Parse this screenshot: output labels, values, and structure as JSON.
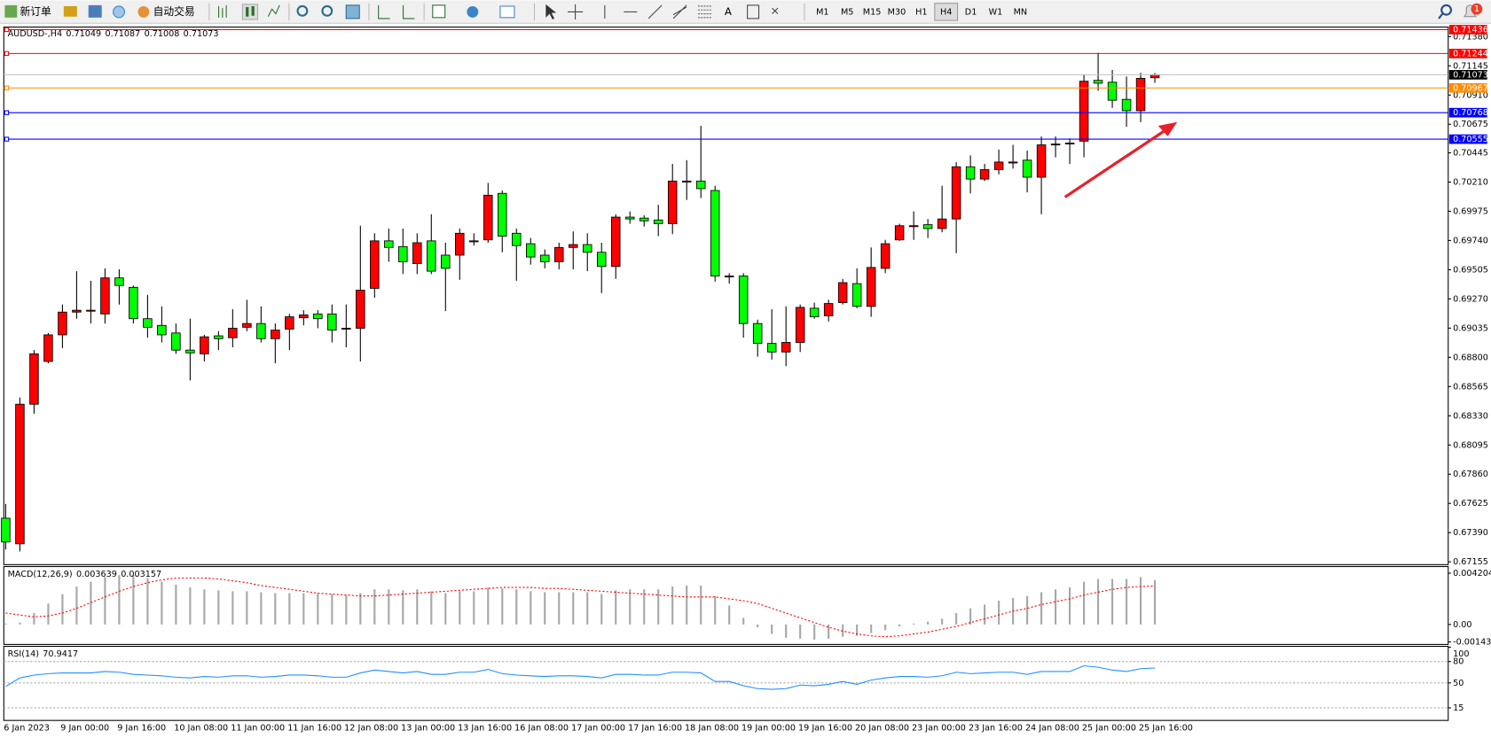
{
  "toolbar": {
    "buttons": [
      "新订单",
      "自动交易"
    ],
    "text_tool": "A",
    "timeframes": [
      "M1",
      "M5",
      "M15",
      "M30",
      "H1",
      "H4",
      "D1",
      "W1",
      "MN"
    ],
    "active_timeframe": "H4",
    "notifications": 1
  },
  "chart_data": [
    {
      "type": "candlestick",
      "title": "AUDUSD-,H4",
      "categories": [
        "6 Jan 2023",
        null,
        null,
        null,
        "9 Jan 00:00",
        null,
        null,
        null,
        "9 Jan 16:00",
        null,
        null,
        null,
        "10 Jan 08:00",
        null,
        null,
        null,
        "11 Jan 00:00",
        null,
        null,
        null,
        "11 Jan 16:00",
        null,
        null,
        null,
        "12 Jan 08:00",
        null,
        null,
        null,
        "13 Jan 00:00",
        null,
        null,
        null,
        "13 Jan 16:00",
        null,
        null,
        null,
        "16 Jan 08:00",
        null,
        null,
        null,
        "17 Jan 00:00",
        null,
        null,
        null,
        "17 Jan 16:00",
        null,
        null,
        null,
        "18 Jan 08:00",
        null,
        null,
        null,
        "19 Jan 00:00",
        null,
        null,
        null,
        "19 Jan 16:00",
        null,
        null,
        null,
        "20 Jan 08:00",
        null,
        null,
        null,
        "23 Jan 00:00",
        null,
        null,
        null,
        "23 Jan 16:00",
        null,
        null,
        null,
        "24 Jan 08:00",
        null,
        null,
        null,
        "25 Jan 00:00",
        null,
        null,
        null,
        "25 Jan 16:00",
        null
      ],
      "open": [
        0.67506,
        0.673,
        0.68423,
        0.68767,
        0.68981,
        0.69164,
        0.69172,
        0.69149,
        0.69439,
        0.69363,
        0.69111,
        0.69057,
        0.68996,
        0.68858,
        0.68828,
        0.68973,
        0.68958,
        0.69042,
        0.69072,
        0.6895,
        0.69027,
        0.69118,
        0.69149,
        0.69149,
        0.69034,
        0.69034,
        0.69355,
        0.69737,
        0.69691,
        0.69554,
        0.69737,
        0.69622,
        0.69622,
        0.69737,
        0.69745,
        0.70119,
        0.69798,
        0.69714,
        0.69622,
        0.69569,
        0.69684,
        0.69707,
        0.69645,
        0.69531,
        0.69928,
        0.6992,
        0.69905,
        0.69875,
        0.70218,
        0.70218,
        0.70142,
        0.69454,
        0.69454,
        0.69072,
        0.68912,
        0.68843,
        0.6892,
        0.69195,
        0.69134,
        0.6924,
        0.69393,
        0.6921,
        0.69516,
        0.69745,
        0.69859,
        0.69867,
        0.69836,
        0.69913,
        0.70333,
        0.70234,
        0.7031,
        0.70371,
        0.70386,
        0.70249,
        0.70516,
        0.70524,
        0.70539,
        0.71028,
        0.71013,
        0.70875,
        0.70784,
        0.71049
      ],
      "high": [
        0.67621,
        0.68476,
        0.68858,
        0.68996,
        0.69225,
        0.69493,
        0.69416,
        0.69516,
        0.69508,
        0.69378,
        0.69302,
        0.6921,
        0.69072,
        0.69111,
        0.68981,
        0.69011,
        0.69187,
        0.69263,
        0.6921,
        0.69072,
        0.69149,
        0.69179,
        0.69179,
        0.69225,
        0.69225,
        0.69859,
        0.69798,
        0.69836,
        0.69836,
        0.69798,
        0.69951,
        0.69722,
        0.69836,
        0.69798,
        0.70203,
        0.70142,
        0.69836,
        0.6976,
        0.69668,
        0.69722,
        0.69813,
        0.69798,
        0.69722,
        0.69951,
        0.69974,
        0.69943,
        0.70027,
        0.70356,
        0.70386,
        0.70662,
        0.7018,
        0.69477,
        0.69477,
        0.69103,
        0.69187,
        0.6921,
        0.69225,
        0.6924,
        0.69263,
        0.69431,
        0.69516,
        0.69684,
        0.69745,
        0.69875,
        0.69974,
        0.69913,
        0.7018,
        0.70371,
        0.70425,
        0.70356,
        0.70471,
        0.70509,
        0.70463,
        0.70577,
        0.70577,
        0.70562,
        0.71074,
        0.7125,
        0.71112,
        0.71059,
        0.71089,
        0.71087
      ],
      "low": [
        0.67254,
        0.67239,
        0.68347,
        0.68752,
        0.68874,
        0.69111,
        0.69072,
        0.69072,
        0.69225,
        0.69072,
        0.68958,
        0.6892,
        0.68828,
        0.68614,
        0.68767,
        0.68858,
        0.68881,
        0.69011,
        0.6892,
        0.68752,
        0.68858,
        0.69057,
        0.69034,
        0.6892,
        0.68881,
        0.68767,
        0.69279,
        0.69569,
        0.6947,
        0.6947,
        0.6947,
        0.69172,
        0.69424,
        0.69699,
        0.69722,
        0.69645,
        0.69416,
        0.69546,
        0.69516,
        0.69508,
        0.69508,
        0.69493,
        0.69317,
        0.69431,
        0.69875,
        0.69852,
        0.69775,
        0.69791,
        0.70066,
        0.70081,
        0.69409,
        0.69393,
        0.68958,
        0.68805,
        0.68782,
        0.68729,
        0.68843,
        0.69111,
        0.69088,
        0.69225,
        0.69195,
        0.69126,
        0.69477,
        0.69737,
        0.69745,
        0.6976,
        0.69806,
        0.69638,
        0.70119,
        0.70218,
        0.70272,
        0.70318,
        0.70127,
        0.69951,
        0.70409,
        0.70356,
        0.70409,
        0.70944,
        0.70807,
        0.70654,
        0.70692,
        0.71008
      ],
      "close": [
        0.67315,
        0.68423,
        0.68828,
        0.68981,
        0.69164,
        0.69179,
        0.69179,
        0.69439,
        0.69378,
        0.69111,
        0.69042,
        0.68981,
        0.68858,
        0.68836,
        0.68965,
        0.6895,
        0.69034,
        0.69072,
        0.6895,
        0.69019,
        0.69126,
        0.69141,
        0.69111,
        0.69019,
        0.69034,
        0.6934,
        0.69737,
        0.69684,
        0.69569,
        0.69722,
        0.69493,
        0.69516,
        0.69798,
        0.69737,
        0.70104,
        0.69775,
        0.69699,
        0.69607,
        0.69569,
        0.69684,
        0.69707,
        0.69645,
        0.69531,
        0.69928,
        0.69913,
        0.69898,
        0.69875,
        0.70218,
        0.70218,
        0.70157,
        0.69454,
        0.69454,
        0.69072,
        0.68912,
        0.68843,
        0.6892,
        0.69202,
        0.69126,
        0.69233,
        0.69401,
        0.6921,
        0.69523,
        0.69714,
        0.69859,
        0.69859,
        0.69836,
        0.69913,
        0.70333,
        0.70234,
        0.7031,
        0.70371,
        0.70371,
        0.70249,
        0.70509,
        0.70516,
        0.70524,
        0.71021,
        0.71005,
        0.70868,
        0.70784,
        0.71044,
        0.71073
      ],
      "up_color": "#ff0000",
      "down_color": "#00ff00",
      "ylim": [
        0.6714,
        0.71449
      ],
      "yticks": [
        {
          "value": 0.7138,
          "label": "0.71380"
        },
        {
          "value": 0.71145,
          "label": "0.71145"
        },
        {
          "value": 0.7091,
          "label": "0.70910"
        },
        {
          "value": 0.70675,
          "label": "0.70675"
        },
        {
          "value": 0.70445,
          "label": "0.70445"
        },
        {
          "value": 0.7021,
          "label": "0.70210"
        },
        {
          "value": 0.69975,
          "label": "0.69975"
        },
        {
          "value": 0.6974,
          "label": "0.69740"
        },
        {
          "value": 0.69505,
          "label": "0.69505"
        },
        {
          "value": 0.6927,
          "label": "0.69270"
        },
        {
          "value": 0.69035,
          "label": "0.69035"
        },
        {
          "value": 0.688,
          "label": "0.68800"
        },
        {
          "value": 0.68565,
          "label": "0.68565"
        },
        {
          "value": 0.6833,
          "label": "0.68330"
        },
        {
          "value": 0.68095,
          "label": "0.68095"
        },
        {
          "value": 0.6786,
          "label": "0.67860"
        },
        {
          "value": 0.67625,
          "label": "0.67625"
        },
        {
          "value": 0.6739,
          "label": "0.67390"
        },
        {
          "value": 0.67155,
          "label": "0.67155"
        }
      ],
      "hlines": [
        {
          "value": 0.71436,
          "color": "#ff0000"
        },
        {
          "value": 0.71244,
          "color": "#ff0000"
        },
        {
          "value": 0.70967,
          "color": "#ff8c00"
        },
        {
          "value": 0.70768,
          "color": "#0000ff"
        },
        {
          "value": 0.70555,
          "color": "#0000ff"
        }
      ],
      "price_line_color": "#c0c0c0"
    },
    {
      "type": "macd",
      "title": "MACD(12,26,9)",
      "values": [
        7.8e-05,
        0.000156,
        0.000934,
        0.001712,
        0.00249,
        0.003112,
        0.003501,
        0.00389,
        0.004046,
        0.004046,
        0.003812,
        0.003501,
        0.003268,
        0.003034,
        0.002879,
        0.002801,
        0.002723,
        0.002723,
        0.002645,
        0.002567,
        0.002567,
        0.002567,
        0.002567,
        0.00249,
        0.002412,
        0.002567,
        0.002879,
        0.002879,
        0.002801,
        0.002879,
        0.002723,
        0.002567,
        0.002723,
        0.002723,
        0.003034,
        0.002956,
        0.002879,
        0.002723,
        0.002645,
        0.002645,
        0.002645,
        0.002645,
        0.00249,
        0.002801,
        0.002879,
        0.002879,
        0.002879,
        0.003112,
        0.00319,
        0.00319,
        0.002334,
        0.001556,
        0.000545,
        -0.000233,
        -0.000778,
        -0.001089,
        -0.001167,
        -0.001245,
        -0.001167,
        -0.001011,
        -0.000934,
        -0.0007,
        -0.000467,
        -0.000156,
        7.8e-05,
        0.000233,
        0.000467,
        0.000934,
        0.001323,
        0.001634,
        0.001945,
        0.002178,
        0.002334,
        0.002645,
        0.002879,
        0.003034,
        0.003501,
        0.003734,
        0.003734,
        0.003734,
        0.00389,
        0.003639
      ],
      "signal": [
        0.000934,
        0.000778,
        0.000622,
        0.0007,
        0.000934,
        0.001323,
        0.001789,
        0.002256,
        0.002723,
        0.003112,
        0.003423,
        0.003657,
        0.003812,
        0.003812,
        0.003812,
        0.003734,
        0.003579,
        0.003423,
        0.00319,
        0.003034,
        0.002879,
        0.002723,
        0.002567,
        0.00249,
        0.002412,
        0.002334,
        0.002334,
        0.002412,
        0.00249,
        0.002567,
        0.002645,
        0.002723,
        0.002801,
        0.002879,
        0.002956,
        0.003034,
        0.003034,
        0.003034,
        0.002956,
        0.002956,
        0.002879,
        0.002801,
        0.002723,
        0.002645,
        0.002567,
        0.00249,
        0.002412,
        0.002334,
        0.002256,
        0.002256,
        0.002256,
        0.0021,
        0.001945,
        0.001712,
        0.001323,
        0.000934,
        0.000545,
        0.000156,
        -0.000233,
        -0.000545,
        -0.000778,
        -0.000934,
        -0.001011,
        -0.000934,
        -0.000778,
        -0.000622,
        -0.000389,
        -0.000156,
        0.000156,
        0.000467,
        0.000778,
        0.001089,
        0.001323,
        0.001634,
        0.001867,
        0.0021,
        0.002412,
        0.002645,
        0.002879,
        0.003034,
        0.003112,
        0.003157
      ],
      "color": "#a8a8a8",
      "signal_color": "#ff0000",
      "ylim": [
        -0.00156,
        0.00467
      ],
      "yticks": [
        0.004204,
        {
          "value": 0,
          "label": "0.00"
        },
        -0.001431
      ]
    },
    {
      "type": "rsi",
      "title": "RSI(14)",
      "values": [
        45,
        57,
        61,
        63,
        64,
        64,
        64,
        66,
        65,
        62,
        61,
        60,
        58,
        57,
        59,
        58,
        60,
        60,
        58,
        59,
        61,
        61,
        60,
        58,
        58,
        64,
        68,
        66,
        64,
        66,
        62,
        62,
        65,
        65,
        69,
        63,
        61,
        60,
        59,
        60,
        60,
        59,
        57,
        62,
        62,
        61,
        61,
        65,
        65,
        64,
        52,
        52,
        46,
        42,
        41,
        42,
        47,
        46,
        48,
        52,
        48,
        54,
        57,
        59,
        59,
        58,
        60,
        65,
        63,
        64,
        65,
        65,
        62,
        66,
        66,
        66,
        74,
        72,
        68,
        66,
        70,
        70.9417
      ],
      "color": "#1e90ff",
      "ylim": [
        0,
        100
      ],
      "yticks": [
        100,
        80,
        50,
        15
      ],
      "levels": [
        80,
        50,
        15
      ]
    }
  ]
}
